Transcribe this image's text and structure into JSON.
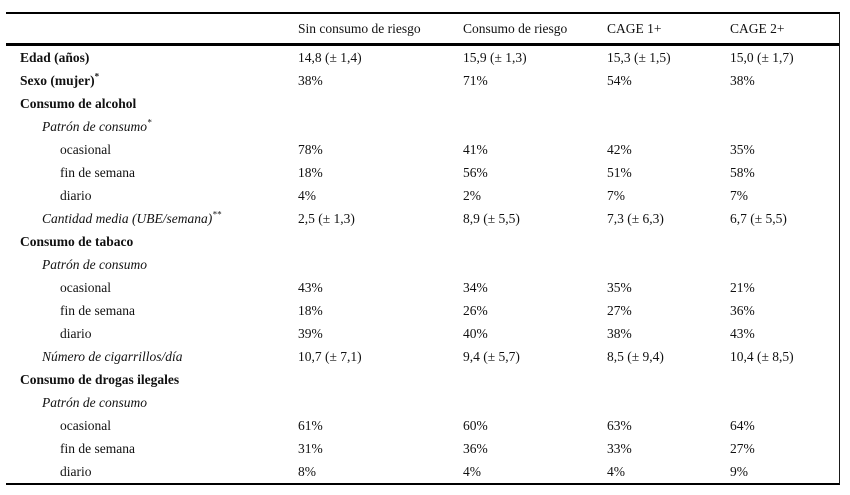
{
  "table": {
    "columns": [
      "",
      "Sin consumo de riesgo",
      "Consumo de riesgo",
      "CAGE 1+",
      "CAGE 2+"
    ],
    "rows": [
      {
        "label": "Edad (años)",
        "sup": "",
        "cells": [
          "14,8 (± 1,4)",
          "15,9 (± 1,3)",
          "15,3 (± 1,5)",
          "15,0 (± 1,7)"
        ]
      },
      {
        "label": "Sexo (mujer)",
        "sup": "*",
        "cells": [
          "38%",
          "71%",
          "54%",
          "38%"
        ]
      },
      {
        "label": "Consumo de alcohol",
        "sup": "",
        "cells": [
          "",
          "",
          "",
          ""
        ]
      },
      {
        "label": "Patrón de consumo",
        "sup": "*",
        "cells": [
          "",
          "",
          "",
          ""
        ]
      },
      {
        "label": "ocasional",
        "sup": "",
        "cells": [
          "78%",
          "41%",
          "42%",
          "35%"
        ]
      },
      {
        "label": "fin de semana",
        "sup": "",
        "cells": [
          "18%",
          "56%",
          "51%",
          "58%"
        ]
      },
      {
        "label": "diario",
        "sup": "",
        "cells": [
          "4%",
          "2%",
          "7%",
          "7%"
        ]
      },
      {
        "label": "Cantidad media (UBE/semana)",
        "sup": "**",
        "cells": [
          "2,5 (± 1,3)",
          "8,9 (± 5,5)",
          "7,3 (± 6,3)",
          "6,7 (± 5,5)"
        ]
      },
      {
        "label": "Consumo de tabaco",
        "sup": "",
        "cells": [
          "",
          "",
          "",
          ""
        ]
      },
      {
        "label": "Patrón de consumo",
        "sup": "",
        "cells": [
          "",
          "",
          "",
          ""
        ]
      },
      {
        "label": "ocasional",
        "sup": "",
        "cells": [
          "43%",
          "34%",
          "35%",
          "21%"
        ]
      },
      {
        "label": "fin de semana",
        "sup": "",
        "cells": [
          "18%",
          "26%",
          "27%",
          "36%"
        ]
      },
      {
        "label": "diario",
        "sup": "",
        "cells": [
          "39%",
          "40%",
          "38%",
          "43%"
        ]
      },
      {
        "label": "Número de cigarrillos/día",
        "sup": "",
        "cells": [
          "10,7 (± 7,1)",
          "9,4 (± 5,7)",
          "8,5 (± 9,4)",
          "10,4 (± 8,5)"
        ]
      },
      {
        "label": "Consumo de drogas ilegales",
        "sup": "",
        "cells": [
          "",
          "",
          "",
          ""
        ]
      },
      {
        "label": "Patrón de consumo",
        "sup": "",
        "cells": [
          "",
          "",
          "",
          ""
        ]
      },
      {
        "label": "ocasional",
        "sup": "",
        "cells": [
          "61%",
          "60%",
          "63%",
          "64%"
        ]
      },
      {
        "label": "fin de semana",
        "sup": "",
        "cells": [
          "31%",
          "36%",
          "33%",
          "27%"
        ]
      },
      {
        "label": "diario",
        "sup": "",
        "cells": [
          "8%",
          "4%",
          "4%",
          "9%"
        ]
      }
    ]
  },
  "colors": {
    "text": "#111111",
    "rule": "#000000",
    "background": "#ffffff"
  }
}
